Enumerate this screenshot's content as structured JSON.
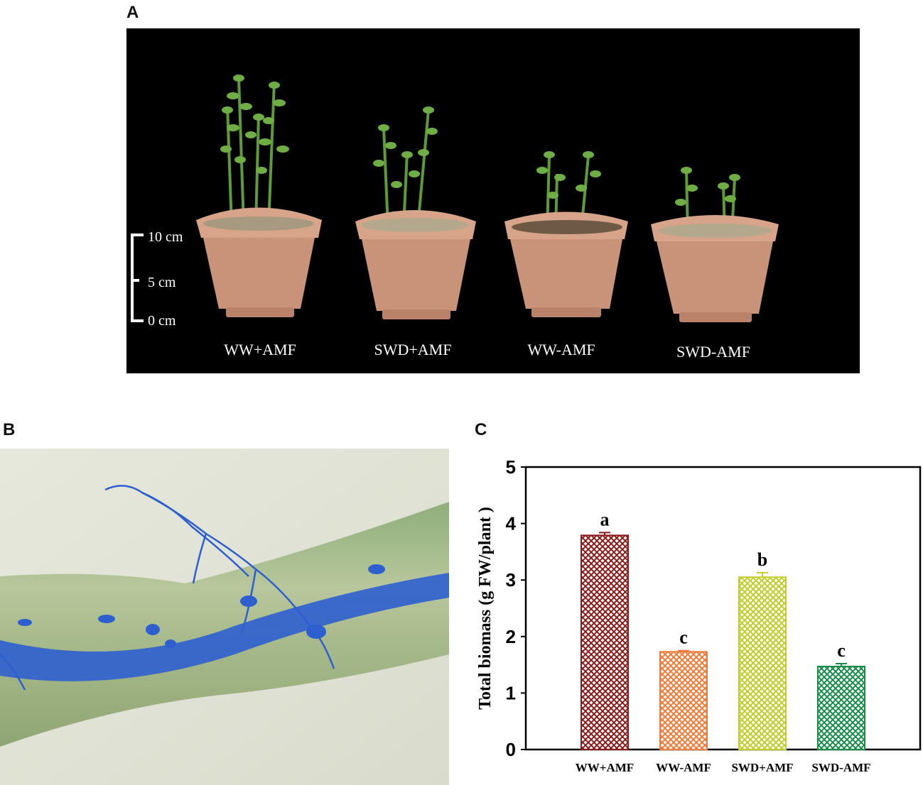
{
  "panels": {
    "a": {
      "letter": "A",
      "scale_labels": [
        "10 cm",
        "5 cm",
        "0 cm"
      ],
      "treatment_labels": [
        "WW+AMF",
        "SWD+AMF",
        "WW-AMF",
        "SWD-AMF"
      ]
    },
    "b": {
      "letter": "B"
    },
    "c": {
      "letter": "C"
    }
  },
  "colors": {
    "photo_background": "#000000",
    "pot": "#c9937a",
    "plant": "#5e9a3a",
    "root_stain": "#2d5fd0",
    "root_tissue": "#a9b887"
  },
  "chart_data": {
    "type": "bar",
    "categories": [
      "WW+AMF",
      "WW-AMF",
      "SWD+AMF",
      "SWD-AMF"
    ],
    "values": [
      3.79,
      1.73,
      3.05,
      1.47
    ],
    "errors": [
      0.05,
      0.02,
      0.08,
      0.05
    ],
    "significance_letters": [
      "a",
      "c",
      "b",
      "c"
    ],
    "bar_colors": [
      "#8b1a1a",
      "#f07a3a",
      "#c2cc2a",
      "#1a8c4a"
    ],
    "ylabel": "Total biomass (g FW/plant )",
    "xlabel": "",
    "ylim": [
      0,
      5
    ],
    "yticks": [
      "0",
      "1",
      "2",
      "3",
      "4",
      "5"
    ],
    "fill_pattern": "crosshatch",
    "grid": false
  }
}
